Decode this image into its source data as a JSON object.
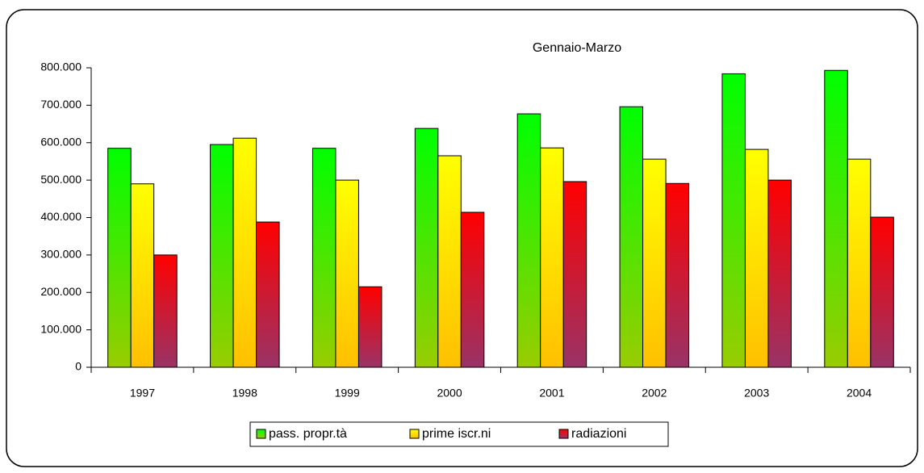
{
  "chart_data": {
    "type": "bar",
    "title": "Gennaio-Marzo",
    "categories": [
      "1997",
      "1998",
      "1999",
      "2000",
      "2001",
      "2002",
      "2003",
      "2004"
    ],
    "series": [
      {
        "name": "pass. propr.tà",
        "color": "#00ff00",
        "gradient_end": "#99cc00",
        "values": [
          585000,
          595000,
          585000,
          638000,
          677000,
          696000,
          784000,
          793000
        ]
      },
      {
        "name": "prime iscr.ni",
        "color": "#ffff00",
        "gradient_end": "#ffc000",
        "values": [
          490000,
          612000,
          500000,
          565000,
          586000,
          556000,
          582000,
          556000
        ]
      },
      {
        "name": "radiazioni",
        "color": "#ff0000",
        "gradient_end": "#993366",
        "values": [
          300000,
          388000,
          215000,
          414000,
          496000,
          491000,
          500000,
          401000
        ]
      }
    ],
    "ylim": [
      0,
      800000
    ],
    "yticks": [
      0,
      {
        "value": 100000,
        "label": "100.000"
      },
      {
        "value": 200000,
        "label": "200.000"
      },
      {
        "value": 300000,
        "label": "300.000"
      },
      {
        "value": 400000,
        "label": "400.000"
      },
      {
        "value": 500000,
        "label": "500.000"
      },
      {
        "value": 600000,
        "label": "600.000"
      },
      {
        "value": 700000,
        "label": "700.000"
      },
      {
        "value": 800000,
        "label": "800.000"
      }
    ],
    "grid": false,
    "legend": "bottom"
  }
}
